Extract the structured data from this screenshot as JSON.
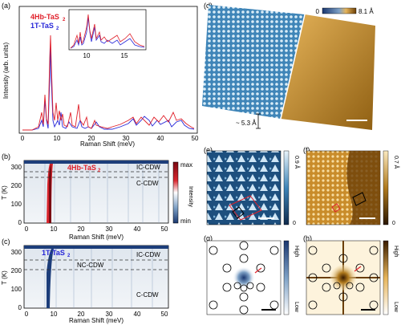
{
  "panel_labels": {
    "a": "(a)",
    "b": "(b)",
    "c": "(c)",
    "d": "(d)",
    "e": "(e)",
    "f": "(f)",
    "g": "(g)",
    "h": "(h)"
  },
  "colors": {
    "red": "#e0202a",
    "blue": "#2727d8",
    "navy": "#1c3d7a",
    "gold": "#b07a1e",
    "gold_light": "#e6b45a",
    "stm_blue": "#3f85b8"
  },
  "panel_a": {
    "ylabel": "Intensity (arb. units)",
    "xlabel": "Raman Shift (meV)",
    "legend_4hb": "4Hb-TaS",
    "legend_4hb_sub": "2",
    "legend_1t": "1T-TaS",
    "legend_1t_sub": "2",
    "inset_ticks": [
      "10",
      "15"
    ]
  },
  "panel_b": {
    "title": "4Hb-TaS",
    "title_sub": "2",
    "ylabel": "T (K)",
    "xlabel": "Raman Shift (meV)",
    "phase_ic": "IC-CDW",
    "phase_c": "C-CDW",
    "cbar_max": "max",
    "cbar_min": "min",
    "cbar_label": "Intensity"
  },
  "panel_c": {
    "title": "1T-TaS",
    "title_sub": "2",
    "ylabel": "T (K)",
    "xlabel": "Raman Shift (meV)",
    "phase_ic": "IC-CDW",
    "phase_nc": "NC-CDW",
    "phase_c": "C-CDW"
  },
  "panel_d": {
    "cbar_min": "0",
    "cbar_max": "8.1 Å",
    "step": "~ 5.3 Å"
  },
  "panel_e": {
    "cbar_top": "0.9 Å",
    "cbar_bottom": "0"
  },
  "panel_f": {
    "cbar_top": "0.7 Å",
    "cbar_bottom": "0"
  },
  "panel_g": {
    "cbar_top": "High",
    "cbar_bottom": "Low"
  },
  "panel_h": {
    "cbar_top": "High",
    "cbar_bottom": "Low"
  },
  "axes": {
    "a_x_ticks": [
      "0",
      "10",
      "20",
      "30",
      "40",
      "50"
    ],
    "b_x_ticks": [
      "0",
      "10",
      "20",
      "30",
      "40",
      "50"
    ],
    "b_y_ticks": [
      "0",
      "100",
      "200",
      "300"
    ],
    "c_x_ticks": [
      "0",
      "10",
      "20",
      "30",
      "40",
      "50"
    ],
    "c_y_ticks": [
      "0",
      "100",
      "200",
      "300"
    ]
  }
}
